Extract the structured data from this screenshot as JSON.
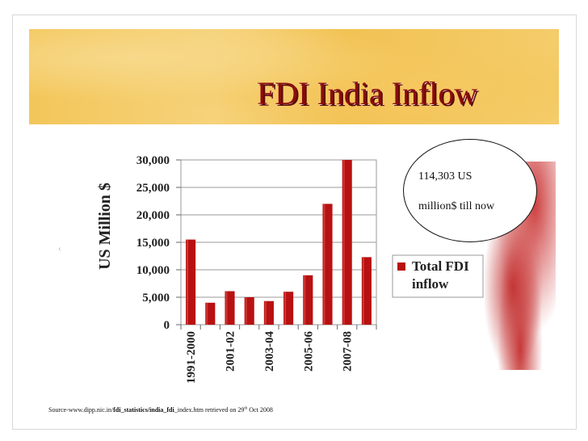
{
  "slide": {
    "title": "FDI India Inflow",
    "callout_line1": "114,303 US",
    "callout_line2": "million$ till now",
    "source_prefix": "Source-www.dipp.nic.in/",
    "source_bold": "fdi_statistics/india_fdi",
    "source_suffix": "_index.htm retrieved on 29",
    "source_sup": "th",
    "source_end": " Oct 2008",
    "bar_color": "#b81111"
  },
  "chart_data": {
    "type": "bar",
    "ylabel": "US Million $",
    "ylim": [
      0,
      30000
    ],
    "yticks": [
      "0",
      "5,000",
      "10,000",
      "15,000",
      "20,000",
      "25,000",
      "30,000"
    ],
    "ytick_values": [
      0,
      5000,
      10000,
      15000,
      20000,
      25000,
      30000
    ],
    "x_tick_labels": [
      "1991-2000",
      "2001-02",
      "2003-04",
      "2005-06",
      "2007-08"
    ],
    "values": [
      15500,
      4000,
      6100,
      5000,
      4300,
      6000,
      9000,
      22000,
      30000,
      12300
    ],
    "legend": "Total FDI inflow",
    "legend_line1": "Total FDI",
    "legend_line2": "inflow"
  }
}
